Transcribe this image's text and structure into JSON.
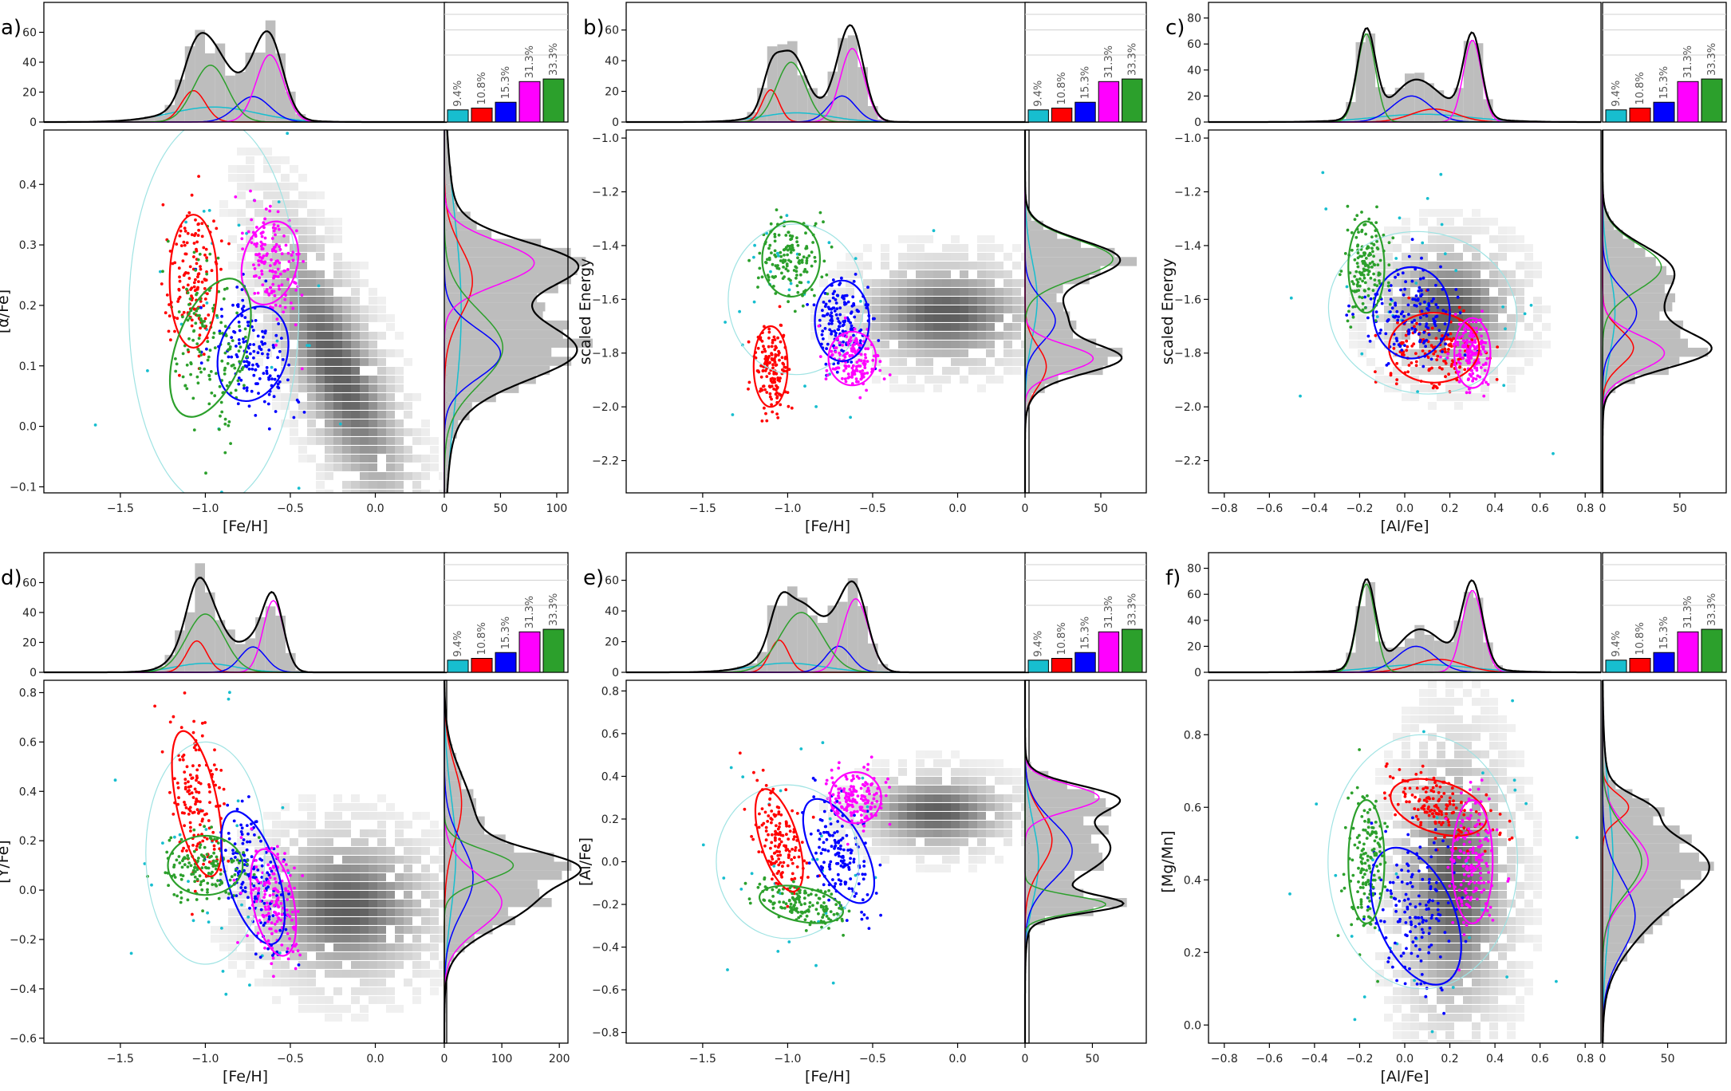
{
  "figure": {
    "component_labels": [
      "cyan",
      "red",
      "blue",
      "magenta",
      "green"
    ],
    "colors": {
      "cyan": "#17becf",
      "red": "#ff0000",
      "blue": "#0000ff",
      "magenta": "#ff00ff",
      "green": "#2ca02c",
      "total": "#000000",
      "hist": "#bdbdbd",
      "hex_dark": "#555555",
      "hex_light": "#e6e6e6",
      "axis": "#000000",
      "cyan_ellipse": "#9fe3e3"
    }
  },
  "chart_data": [
    {
      "panel_label": "a)",
      "type": "scatter",
      "xlabel": "[Fe/H]",
      "ylabel": "[α/Fe]",
      "xlim": [
        -1.95,
        0.42
      ],
      "ylim": [
        -0.11,
        0.49
      ],
      "xticks": [
        -1.5,
        -1.0,
        -0.5,
        0.0
      ],
      "xticklabels": [
        "−1.5",
        "−1.0",
        "−0.5",
        "0.0"
      ],
      "yticks": [
        -0.1,
        0.0,
        0.1,
        0.2,
        0.3,
        0.4
      ],
      "yticklabels": [
        "−0.1",
        "0.0",
        "0.1",
        "0.2",
        "0.3",
        "0.4"
      ],
      "top_ylim": [
        0,
        80
      ],
      "top_yticks": [
        0,
        20,
        40,
        60
      ],
      "top_yticklabels": [
        "0",
        "20",
        "40",
        "60"
      ],
      "right_xlim": [
        0,
        110
      ],
      "right_xticks": [
        0,
        50,
        100
      ],
      "right_xticklabels": [
        "0",
        "50",
        "100"
      ],
      "bar_values": [
        9.4,
        10.8,
        15.3,
        31.3,
        33.3
      ],
      "bar_labels": [
        "9.4%",
        "10.8%",
        "15.3%",
        "31.3%",
        "33.3%"
      ],
      "components": [
        {
          "name": "cyan",
          "mx": -0.95,
          "my": 0.19,
          "sx": 0.5,
          "sy": 0.32,
          "angle": 0
        },
        {
          "name": "red",
          "mx": -1.07,
          "my": 0.24,
          "sx": 0.14,
          "sy": 0.11,
          "angle": 0
        },
        {
          "name": "blue",
          "mx": -0.72,
          "my": 0.12,
          "sx": 0.2,
          "sy": 0.08,
          "angle": -0.3
        },
        {
          "name": "magenta",
          "mx": -0.62,
          "my": 0.27,
          "sx": 0.16,
          "sy": 0.07,
          "angle": -0.25
        },
        {
          "name": "green",
          "mx": -0.97,
          "my": 0.13,
          "sx": 0.2,
          "sy": 0.12,
          "angle": -0.35
        }
      ],
      "weights_x": [
        10,
        21,
        17,
        45,
        38
      ],
      "weights_y": [
        15,
        25,
        50,
        80,
        52
      ],
      "field": {
        "mx": -0.25,
        "my": 0.1,
        "sx": 0.32,
        "sy": 0.1,
        "angle": -0.45
      }
    },
    {
      "panel_label": "b)",
      "type": "scatter",
      "xlabel": "[Fe/H]",
      "ylabel": "scaled Energy",
      "xlim": [
        -1.95,
        0.42
      ],
      "ylim": [
        -2.32,
        -0.97
      ],
      "xticks": [
        -1.5,
        -1.0,
        -0.5,
        0.0
      ],
      "xticklabels": [
        "−1.5",
        "−1.0",
        "−0.5",
        "0.0"
      ],
      "yticks": [
        -2.2,
        -2.0,
        -1.8,
        -1.6,
        -1.4,
        -1.2,
        -1.0
      ],
      "yticklabels": [
        "−2.2",
        "−2.0",
        "−1.8",
        "−1.6",
        "−1.4",
        "−1.2",
        "−1.0"
      ],
      "top_ylim": [
        0,
        78
      ],
      "top_yticks": [
        0,
        20,
        40,
        60
      ],
      "top_yticklabels": [
        "0",
        "20",
        "40",
        "60"
      ],
      "right_xlim": [
        0,
        80
      ],
      "right_xticks": [
        0,
        50
      ],
      "right_xticklabels": [
        "0",
        "50"
      ],
      "bar_values": [
        9.4,
        10.8,
        15.3,
        31.3,
        33.3
      ],
      "bar_labels": [
        "9.4%",
        "10.8%",
        "15.3%",
        "31.3%",
        "33.3%"
      ],
      "components": [
        {
          "name": "cyan",
          "mx": -0.95,
          "my": -1.6,
          "sx": 0.4,
          "sy": 0.28,
          "angle": 0
        },
        {
          "name": "red",
          "mx": -1.1,
          "my": -1.85,
          "sx": 0.1,
          "sy": 0.15,
          "angle": 0
        },
        {
          "name": "blue",
          "mx": -0.68,
          "my": -1.68,
          "sx": 0.16,
          "sy": 0.15,
          "angle": 0
        },
        {
          "name": "magenta",
          "mx": -0.62,
          "my": -1.82,
          "sx": 0.14,
          "sy": 0.1,
          "angle": 0
        },
        {
          "name": "green",
          "mx": -0.98,
          "my": -1.45,
          "sx": 0.17,
          "sy": 0.14,
          "angle": 0
        }
      ],
      "weights_x": [
        6,
        21,
        17,
        48,
        39
      ],
      "weights_y": [
        8,
        14,
        20,
        45,
        58
      ],
      "field": {
        "mx": -0.1,
        "my": -1.64,
        "sx": 0.35,
        "sy": 0.13,
        "angle": 0
      }
    },
    {
      "panel_label": "c)",
      "type": "scatter",
      "xlabel": "[Al/Fe]",
      "ylabel": "scaled Energy",
      "xlim": [
        -0.87,
        0.87
      ],
      "ylim": [
        -2.32,
        -0.97
      ],
      "xticks": [
        -0.8,
        -0.6,
        -0.4,
        -0.2,
        0.0,
        0.2,
        0.4,
        0.6,
        0.8
      ],
      "xticklabels": [
        "−0.8",
        "−0.6",
        "−0.4",
        "−0.2",
        "0.0",
        "0.2",
        "0.4",
        "0.6",
        "0.8"
      ],
      "yticks": [
        -2.2,
        -2.0,
        -1.8,
        -1.6,
        -1.4,
        -1.2,
        -1.0
      ],
      "yticklabels": [
        "−2.2",
        "−2.0",
        "−1.8",
        "−1.6",
        "−1.4",
        "−1.2",
        "−1.0"
      ],
      "top_ylim": [
        0,
        92
      ],
      "top_yticks": [
        0,
        20,
        40,
        60,
        80
      ],
      "top_yticklabels": [
        "0",
        "20",
        "40",
        "60",
        "80"
      ],
      "right_xlim": [
        0,
        80
      ],
      "right_xticks": [
        0,
        50
      ],
      "right_xticklabels": [
        "0",
        "50"
      ],
      "bar_values": [
        9.4,
        10.8,
        15.3,
        31.3,
        33.3
      ],
      "bar_labels": [
        "9.4%",
        "10.8%",
        "15.3%",
        "31.3%",
        "33.3%"
      ],
      "components": [
        {
          "name": "cyan",
          "mx": 0.08,
          "my": -1.65,
          "sx": 0.42,
          "sy": 0.3,
          "angle": -0.2
        },
        {
          "name": "red",
          "mx": 0.13,
          "my": -1.78,
          "sx": 0.2,
          "sy": 0.13,
          "angle": 0
        },
        {
          "name": "blue",
          "mx": 0.03,
          "my": -1.65,
          "sx": 0.17,
          "sy": 0.17,
          "angle": 0
        },
        {
          "name": "magenta",
          "mx": 0.3,
          "my": -1.8,
          "sx": 0.08,
          "sy": 0.13,
          "angle": 0
        },
        {
          "name": "green",
          "mx": -0.17,
          "my": -1.48,
          "sx": 0.08,
          "sy": 0.17,
          "angle": 0
        }
      ],
      "weights_x": [
        6,
        10,
        20,
        63,
        68
      ],
      "weights_y": [
        8,
        20,
        22,
        40,
        38
      ],
      "field": {
        "mx": 0.18,
        "my": -1.62,
        "sx": 0.2,
        "sy": 0.16,
        "angle": 0
      }
    },
    {
      "panel_label": "d)",
      "type": "scatter",
      "xlabel": "[Fe/H]",
      "ylabel": "[Y/Fe]",
      "xlim": [
        -1.95,
        0.42
      ],
      "ylim": [
        -0.62,
        0.85
      ],
      "xticks": [
        -1.5,
        -1.0,
        -0.5,
        0.0
      ],
      "xticklabels": [
        "−1.5",
        "−1.0",
        "−0.5",
        "0.0"
      ],
      "yticks": [
        -0.6,
        -0.4,
        -0.2,
        0.0,
        0.2,
        0.4,
        0.6,
        0.8
      ],
      "yticklabels": [
        "−0.6",
        "−0.4",
        "−0.2",
        "0.0",
        "0.2",
        "0.4",
        "0.6",
        "0.8"
      ],
      "top_ylim": [
        0,
        80
      ],
      "top_yticks": [
        0,
        20,
        40,
        60
      ],
      "top_yticklabels": [
        "0",
        "20",
        "40",
        "60"
      ],
      "right_xlim": [
        0,
        215
      ],
      "right_xticks": [
        0,
        100,
        200
      ],
      "right_xticklabels": [
        "0",
        "100",
        "200"
      ],
      "bar_values": [
        9.4,
        10.8,
        15.3,
        31.3,
        33.3
      ],
      "bar_labels": [
        "9.4%",
        "10.8%",
        "15.3%",
        "31.3%",
        "33.3%"
      ],
      "components": [
        {
          "name": "cyan",
          "mx": -1.0,
          "my": 0.15,
          "sx": 0.35,
          "sy": 0.45,
          "angle": 0
        },
        {
          "name": "red",
          "mx": -1.05,
          "my": 0.35,
          "sx": 0.12,
          "sy": 0.3,
          "angle": 0.2
        },
        {
          "name": "blue",
          "mx": -0.72,
          "my": 0.05,
          "sx": 0.15,
          "sy": 0.28,
          "angle": 0.3
        },
        {
          "name": "magenta",
          "mx": -0.6,
          "my": -0.05,
          "sx": 0.12,
          "sy": 0.22,
          "angle": 0.2
        },
        {
          "name": "green",
          "mx": -1.0,
          "my": 0.1,
          "sx": 0.22,
          "sy": 0.12,
          "angle": 0
        }
      ],
      "weights_x": [
        6,
        21,
        17,
        48,
        39
      ],
      "weights_y": [
        20,
        30,
        50,
        100,
        120
      ],
      "field": {
        "mx": -0.2,
        "my": -0.05,
        "sx": 0.35,
        "sy": 0.2,
        "angle": 0
      }
    },
    {
      "panel_label": "e)",
      "type": "scatter",
      "xlabel": "[Fe/H]",
      "ylabel": "[Al/Fe]",
      "xlim": [
        -1.95,
        0.42
      ],
      "ylim": [
        -0.85,
        0.85
      ],
      "xticks": [
        -1.5,
        -1.0,
        -0.5,
        0.0
      ],
      "xticklabels": [
        "−1.5",
        "−1.0",
        "−0.5",
        "0.0"
      ],
      "yticks": [
        -0.8,
        -0.6,
        -0.4,
        -0.2,
        0.0,
        0.2,
        0.4,
        0.6,
        0.8
      ],
      "yticklabels": [
        "−0.8",
        "−0.6",
        "−0.4",
        "−0.2",
        "0.0",
        "0.2",
        "0.4",
        "0.6",
        "0.8"
      ],
      "top_ylim": [
        0,
        78
      ],
      "top_yticks": [
        0,
        20,
        40,
        60
      ],
      "top_yticklabels": [
        "0",
        "20",
        "40",
        "60"
      ],
      "right_xlim": [
        0,
        90
      ],
      "right_xticks": [
        0,
        50
      ],
      "right_xticklabels": [
        "0",
        "50"
      ],
      "bar_values": [
        9.4,
        10.8,
        15.3,
        31.3,
        33.3
      ],
      "bar_labels": [
        "9.4%",
        "10.8%",
        "15.3%",
        "31.3%",
        "33.3%"
      ],
      "components": [
        {
          "name": "cyan",
          "mx": -1.0,
          "my": 0.0,
          "sx": 0.42,
          "sy": 0.36,
          "angle": 0
        },
        {
          "name": "red",
          "mx": -1.05,
          "my": 0.1,
          "sx": 0.11,
          "sy": 0.25,
          "angle": 0.3
        },
        {
          "name": "blue",
          "mx": -0.7,
          "my": 0.05,
          "sx": 0.15,
          "sy": 0.27,
          "angle": 0.5
        },
        {
          "name": "magenta",
          "mx": -0.6,
          "my": 0.3,
          "sx": 0.15,
          "sy": 0.12,
          "angle": 0
        },
        {
          "name": "green",
          "mx": -0.92,
          "my": -0.2,
          "sx": 0.25,
          "sy": 0.08,
          "angle": -0.2
        }
      ],
      "weights_x": [
        6,
        21,
        17,
        48,
        39
      ],
      "weights_y": [
        10,
        20,
        35,
        55,
        60
      ],
      "field": {
        "mx": -0.15,
        "my": 0.25,
        "sx": 0.3,
        "sy": 0.12,
        "angle": 0
      }
    },
    {
      "panel_label": "f)",
      "type": "scatter",
      "xlabel": "[Al/Fe]",
      "ylabel": "[Mg/Mn]",
      "xlim": [
        -0.87,
        0.87
      ],
      "ylim": [
        -0.05,
        0.95
      ],
      "xticks": [
        -0.8,
        -0.6,
        -0.4,
        -0.2,
        0.0,
        0.2,
        0.4,
        0.6,
        0.8
      ],
      "xticklabels": [
        "−0.8",
        "−0.6",
        "−0.4",
        "−0.2",
        "0.0",
        "0.2",
        "0.4",
        "0.6",
        "0.8"
      ],
      "yticks": [
        0.0,
        0.2,
        0.4,
        0.6,
        0.8
      ],
      "yticklabels": [
        "0.0",
        "0.2",
        "0.4",
        "0.6",
        "0.8"
      ],
      "top_ylim": [
        0,
        92
      ],
      "top_yticks": [
        0,
        20,
        40,
        60,
        80
      ],
      "top_yticklabels": [
        "0",
        "20",
        "40",
        "60",
        "80"
      ],
      "right_xlim": [
        0,
        95
      ],
      "right_xticks": [
        0,
        50
      ],
      "right_xticklabels": [
        "0",
        "50"
      ],
      "bar_values": [
        9.4,
        10.8,
        15.3,
        31.3,
        33.3
      ],
      "bar_labels": [
        "9.4%",
        "10.8%",
        "15.3%",
        "31.3%",
        "33.3%"
      ],
      "components": [
        {
          "name": "cyan",
          "mx": 0.08,
          "my": 0.45,
          "sx": 0.42,
          "sy": 0.35,
          "angle": 0
        },
        {
          "name": "red",
          "mx": 0.15,
          "my": 0.6,
          "sx": 0.22,
          "sy": 0.07,
          "angle": -0.3
        },
        {
          "name": "blue",
          "mx": 0.05,
          "my": 0.3,
          "sx": 0.17,
          "sy": 0.2,
          "angle": 0.4
        },
        {
          "name": "magenta",
          "mx": 0.3,
          "my": 0.45,
          "sx": 0.09,
          "sy": 0.17,
          "angle": 0
        },
        {
          "name": "green",
          "mx": -0.17,
          "my": 0.45,
          "sx": 0.08,
          "sy": 0.17,
          "angle": 0
        }
      ],
      "weights_x": [
        6,
        10,
        20,
        63,
        68
      ],
      "weights_y": [
        8,
        20,
        25,
        35,
        30
      ],
      "field": {
        "mx": 0.2,
        "my": 0.4,
        "sx": 0.17,
        "sy": 0.25,
        "angle": 0
      }
    }
  ]
}
